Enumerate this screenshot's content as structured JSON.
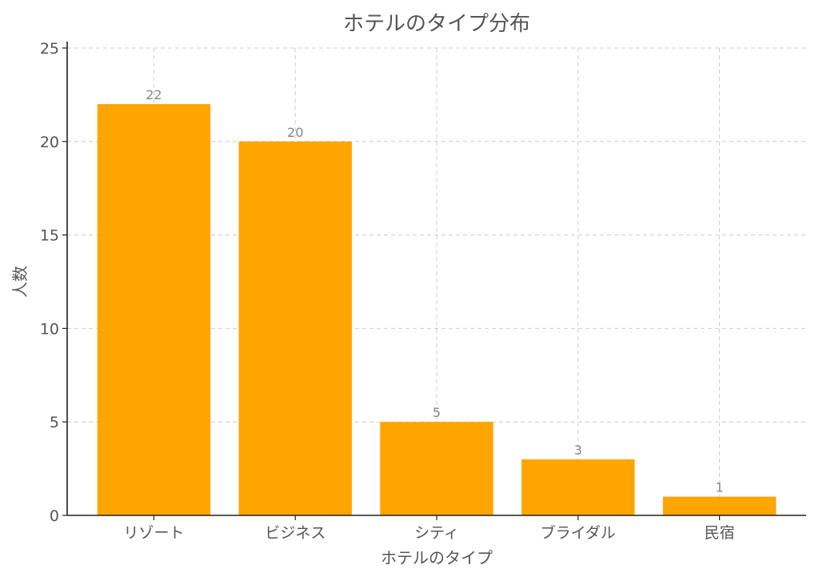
{
  "chart_data": {
    "type": "bar",
    "title": "ホテルのタイプ分布",
    "xlabel": "ホテルのタイプ",
    "ylabel": "人数",
    "categories": [
      "リゾート",
      "ビジネス",
      "シティ",
      "ブライダル",
      "民宿"
    ],
    "values": [
      22,
      20,
      5,
      3,
      1
    ],
    "ylim": [
      0,
      25
    ],
    "yticks": [
      0,
      5,
      10,
      15,
      20,
      25
    ],
    "grid": true,
    "bar_color": "#FFA500"
  }
}
